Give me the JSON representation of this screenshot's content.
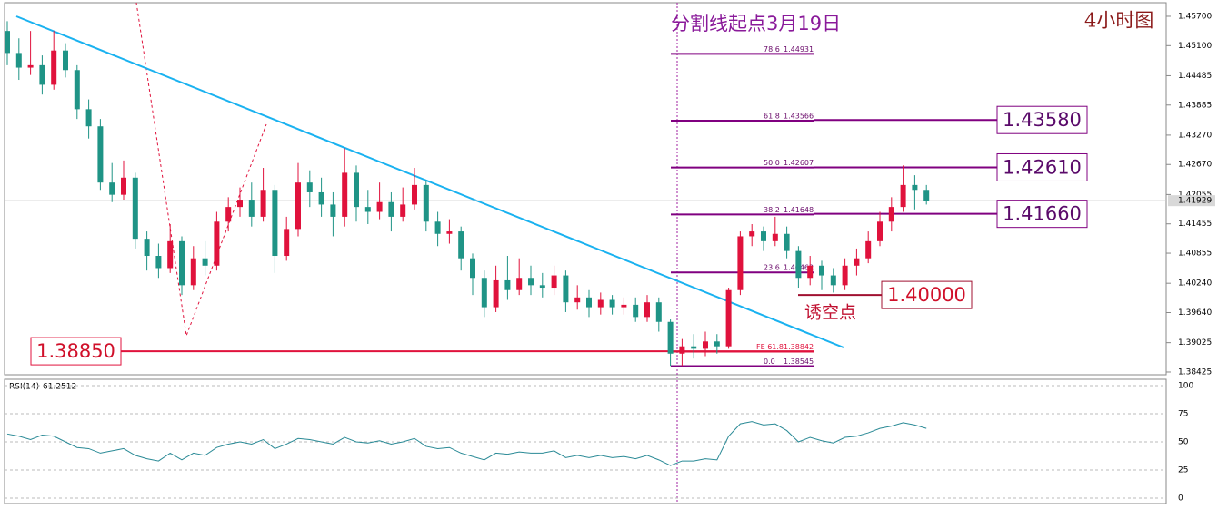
{
  "chart_data": [
    {
      "type": "candlestick",
      "title": "分割线起点3月19日",
      "subtitle": "4小时图",
      "up_color": "#e0123c",
      "down_color": "#1f9486",
      "open": [
        1.454,
        1.4495,
        1.4465,
        1.447,
        1.443,
        1.45,
        1.446,
        1.438,
        1.4345,
        1.423,
        1.4205,
        1.424,
        1.4115,
        1.408,
        1.4055,
        1.411,
        1.402,
        1.4075,
        1.406,
        1.415,
        1.418,
        1.4195,
        1.416,
        1.4215,
        1.408,
        1.4135,
        1.423,
        1.421,
        1.4185,
        1.416,
        1.425,
        1.418,
        1.417,
        1.419,
        1.416,
        1.4185,
        1.4225,
        1.415,
        1.4125,
        1.413,
        1.4075,
        1.4035,
        1.3975,
        1.403,
        1.401,
        1.4035,
        1.402,
        1.4015,
        1.404,
        1.3985,
        1.3995,
        1.3975,
        1.399,
        1.3975,
        1.398,
        1.3955,
        1.3985,
        1.3945,
        1.388,
        1.3895,
        1.389,
        1.3905,
        1.3895,
        1.401,
        1.412,
        1.413,
        1.411,
        1.4125,
        1.409,
        1.4035,
        1.406,
        1.404,
        1.402,
        1.406,
        1.4075,
        1.411,
        1.415,
        1.418,
        1.4225,
        1.4215
      ],
      "high": [
        1.456,
        1.4525,
        1.454,
        1.449,
        1.454,
        1.4515,
        1.447,
        1.44,
        1.436,
        1.427,
        1.4275,
        1.425,
        1.413,
        1.4105,
        1.4145,
        1.412,
        1.41,
        1.411,
        1.417,
        1.42,
        1.422,
        1.423,
        1.426,
        1.4225,
        1.416,
        1.427,
        1.4255,
        1.424,
        1.421,
        1.43,
        1.4265,
        1.4215,
        1.423,
        1.421,
        1.422,
        1.426,
        1.4235,
        1.417,
        1.4155,
        1.414,
        1.4085,
        1.405,
        1.406,
        1.408,
        1.4075,
        1.406,
        1.4045,
        1.406,
        1.405,
        1.402,
        1.401,
        1.4005,
        1.4,
        1.3995,
        1.3995,
        1.4,
        1.3995,
        1.395,
        1.391,
        1.392,
        1.3925,
        1.392,
        1.4015,
        1.413,
        1.4145,
        1.414,
        1.416,
        1.414,
        1.41,
        1.408,
        1.407,
        1.4055,
        1.4075,
        1.4095,
        1.413,
        1.417,
        1.42,
        1.4265,
        1.4245,
        1.4225
      ],
      "low": [
        1.447,
        1.444,
        1.445,
        1.441,
        1.442,
        1.4445,
        1.436,
        1.432,
        1.4215,
        1.419,
        1.4195,
        1.4095,
        1.405,
        1.4035,
        1.4045,
        1.4,
        1.401,
        1.404,
        1.405,
        1.413,
        1.416,
        1.414,
        1.415,
        1.4045,
        1.407,
        1.412,
        1.418,
        1.416,
        1.412,
        1.414,
        1.415,
        1.4145,
        1.4155,
        1.413,
        1.415,
        1.4175,
        1.413,
        1.41,
        1.4105,
        1.405,
        1.4,
        1.3955,
        1.3965,
        1.399,
        1.4,
        1.4,
        1.3995,
        1.4,
        1.3965,
        1.397,
        1.3955,
        1.396,
        1.396,
        1.396,
        1.3945,
        1.3945,
        1.3925,
        1.3855,
        1.3855,
        1.387,
        1.3875,
        1.388,
        1.389,
        1.4,
        1.41,
        1.409,
        1.41,
        1.4075,
        1.4015,
        1.402,
        1.401,
        1.4005,
        1.401,
        1.404,
        1.4065,
        1.41,
        1.413,
        1.417,
        1.4175,
        1.4185
      ],
      "close": [
        1.4495,
        1.4465,
        1.447,
        1.443,
        1.45,
        1.446,
        1.438,
        1.4345,
        1.423,
        1.4205,
        1.424,
        1.4115,
        1.408,
        1.4055,
        1.411,
        1.402,
        1.4075,
        1.406,
        1.415,
        1.418,
        1.4195,
        1.416,
        1.4215,
        1.408,
        1.4135,
        1.423,
        1.421,
        1.4185,
        1.416,
        1.425,
        1.418,
        1.417,
        1.419,
        1.416,
        1.4185,
        1.4225,
        1.415,
        1.4125,
        1.413,
        1.4075,
        1.4035,
        1.3975,
        1.403,
        1.401,
        1.4035,
        1.402,
        1.4015,
        1.404,
        1.3985,
        1.3995,
        1.3975,
        1.399,
        1.3975,
        1.398,
        1.3955,
        1.3985,
        1.3945,
        1.388,
        1.3895,
        1.389,
        1.3905,
        1.3895,
        1.401,
        1.412,
        1.413,
        1.411,
        1.4125,
        1.409,
        1.4035,
        1.406,
        1.404,
        1.402,
        1.406,
        1.4075,
        1.411,
        1.415,
        1.418,
        1.4225,
        1.4215,
        1.4193
      ],
      "ylim": [
        1.38369,
        1.45978
      ],
      "yticks": [
        {
          "value": 1.457,
          "label": "1.45700"
        },
        {
          "value": 1.451,
          "label": "1.45100"
        },
        {
          "value": 1.44485,
          "label": "1.44485"
        },
        {
          "value": 1.43885,
          "label": "1.43885"
        },
        {
          "value": 1.4327,
          "label": "1.43270"
        },
        {
          "value": 1.4267,
          "label": "1.42670"
        },
        {
          "value": 1.42055,
          "label": "1.42055"
        },
        {
          "value": 1.41455,
          "label": "1.41455"
        },
        {
          "value": 1.40855,
          "label": "1.40855"
        },
        {
          "value": 1.4024,
          "label": "1.40240"
        },
        {
          "value": 1.3964,
          "label": "1.39640"
        },
        {
          "value": 1.39025,
          "label": "1.39025"
        },
        {
          "value": 1.38425,
          "label": "1.38425"
        }
      ],
      "last_price": 1.41929,
      "fib_levels": [
        {
          "level": "78.6",
          "value": 1.44931
        },
        {
          "level": "61.8",
          "value": 1.43566
        },
        {
          "level": "50.0",
          "value": 1.42607
        },
        {
          "level": "38.2",
          "value": 1.41648
        },
        {
          "level": "23.6",
          "value": 1.40462
        },
        {
          "level": "0.0",
          "value": 1.38545
        },
        {
          "level": "FE 61.8",
          "value": 1.38842
        }
      ],
      "price_boxes": [
        {
          "value": 1.4358,
          "label": "1.43580"
        },
        {
          "value": 1.4261,
          "label": "1.42610"
        },
        {
          "value": 1.4166,
          "label": "1.41660"
        },
        {
          "value": 1.4,
          "label": "1.40000"
        },
        {
          "value": 1.3885,
          "label": "1.38850"
        }
      ],
      "annotation": "诱空点"
    },
    {
      "type": "line",
      "name": "RSI(14)",
      "last_value": 61.2512,
      "color": "#2a8a96",
      "values": [
        57,
        55,
        52,
        56,
        55,
        50,
        45,
        44,
        40,
        42,
        44,
        38,
        35,
        33,
        40,
        34,
        40,
        38,
        45,
        48,
        50,
        48,
        52,
        44,
        48,
        53,
        52,
        50,
        48,
        54,
        50,
        49,
        51,
        48,
        50,
        53,
        46,
        44,
        45,
        40,
        37,
        34,
        40,
        39,
        41,
        40,
        40,
        42,
        36,
        38,
        36,
        38,
        36,
        37,
        35,
        38,
        34,
        29,
        33,
        33,
        35,
        34,
        55,
        66,
        68,
        65,
        66,
        60,
        50,
        54,
        51,
        49,
        54,
        55,
        58,
        62,
        64,
        67,
        65,
        62
      ],
      "ylim": [
        -4.8,
        105.6
      ],
      "yticks": [
        100,
        75,
        50,
        25,
        0
      ],
      "grid": true
    }
  ]
}
